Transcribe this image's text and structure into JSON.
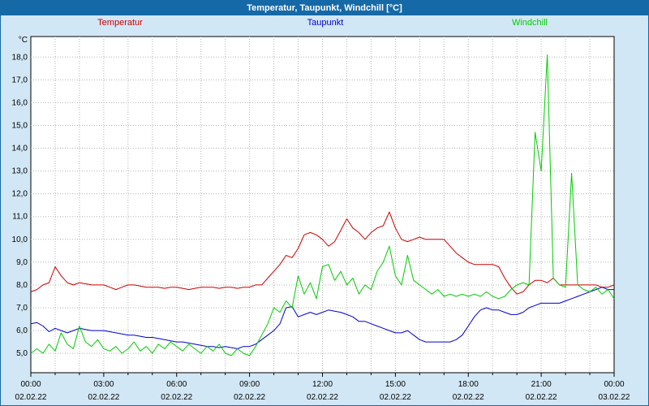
{
  "window": {
    "title": "Temperatur, Taupunkt, Windchill [°C]"
  },
  "colors": {
    "titlebar_bg": "#1569a6",
    "titlebar_text": "#ffffff",
    "page_bg": "#d2e7f5",
    "plot_bg": "#ffffff",
    "plot_border": "#000000",
    "grid": "#b4b4b4",
    "temperatur": "#cc0000",
    "taupunkt": "#0000cc",
    "windchill": "#00cc00"
  },
  "legend": [
    {
      "label": "Temperatur",
      "color": "#cc0000"
    },
    {
      "label": "Taupunkt",
      "color": "#0000cc"
    },
    {
      "label": "Windchill",
      "color": "#00cc00"
    }
  ],
  "chart_data": {
    "type": "line",
    "title": "Temperatur, Taupunkt, Windchill [°C]",
    "y_unit": "°C",
    "ylim": [
      4.15,
      18.9
    ],
    "y_ticks": [
      18,
      17,
      16,
      15,
      14,
      13,
      12,
      11,
      10,
      9,
      8,
      7,
      6,
      5
    ],
    "y_tick_labels": [
      "18,0",
      "17,0",
      "16,0",
      "15,0",
      "14,0",
      "13,0",
      "12,0",
      "11,0",
      "10,0",
      "9,0",
      "8,0",
      "7,0",
      "6,0",
      "5,0"
    ],
    "x_start_hour": 0,
    "x_step_hours": 0.25,
    "x_total_hours": 24,
    "x_grid_every_hours": 1,
    "grid": true,
    "legend_position": "top",
    "x_ticks": [
      {
        "hour": 0,
        "time": "00:00",
        "date": "02.02.22"
      },
      {
        "hour": 3,
        "time": "03:00",
        "date": "02.02.22"
      },
      {
        "hour": 6,
        "time": "06:00",
        "date": "02.02.22"
      },
      {
        "hour": 9,
        "time": "09:00",
        "date": "02.02.22"
      },
      {
        "hour": 12,
        "time": "12:00",
        "date": "02.02.22"
      },
      {
        "hour": 15,
        "time": "15:00",
        "date": "02.02.22"
      },
      {
        "hour": 18,
        "time": "18:00",
        "date": "02.02.22"
      },
      {
        "hour": 21,
        "time": "21:00",
        "date": "02.02.22"
      },
      {
        "hour": 24,
        "time": "00:00",
        "date": "03.02.22"
      }
    ],
    "series": [
      {
        "name": "Temperatur",
        "color": "#cc0000",
        "values": [
          7.7,
          7.8,
          8.0,
          8.1,
          8.8,
          8.4,
          8.1,
          8.0,
          8.1,
          8.05,
          8.0,
          8.0,
          8.0,
          7.9,
          7.8,
          7.9,
          8.0,
          8.0,
          7.95,
          7.9,
          7.9,
          7.9,
          7.85,
          7.9,
          7.9,
          7.85,
          7.8,
          7.85,
          7.9,
          7.9,
          7.9,
          7.85,
          7.9,
          7.9,
          7.85,
          7.9,
          7.9,
          8.0,
          8.0,
          8.3,
          8.6,
          8.9,
          9.3,
          9.2,
          9.6,
          10.2,
          10.3,
          10.2,
          10.0,
          9.7,
          9.9,
          10.4,
          10.9,
          10.5,
          10.3,
          10.0,
          10.3,
          10.5,
          10.6,
          11.2,
          10.5,
          10.0,
          9.9,
          10.0,
          10.1,
          10.0,
          10.0,
          10.0,
          10.0,
          9.7,
          9.4,
          9.2,
          9.0,
          8.9,
          8.9,
          8.9,
          8.9,
          8.8,
          8.3,
          7.9,
          7.6,
          7.7,
          8.0,
          8.2,
          8.2,
          8.1,
          8.3,
          8.0,
          8.0,
          8.0,
          8.0,
          8.0,
          8.0,
          8.0,
          7.9,
          7.9,
          8.0
        ]
      },
      {
        "name": "Taupunkt",
        "color": "#0000cc",
        "values": [
          6.3,
          6.35,
          6.2,
          5.95,
          6.1,
          6.0,
          5.9,
          6.0,
          6.1,
          6.05,
          6.0,
          6.0,
          6.0,
          5.95,
          5.9,
          5.85,
          5.8,
          5.8,
          5.75,
          5.7,
          5.7,
          5.65,
          5.6,
          5.55,
          5.5,
          5.5,
          5.45,
          5.4,
          5.35,
          5.3,
          5.3,
          5.25,
          5.3,
          5.25,
          5.2,
          5.3,
          5.3,
          5.4,
          5.6,
          5.8,
          6.0,
          6.3,
          7.0,
          7.05,
          6.6,
          6.7,
          6.8,
          6.7,
          6.8,
          6.9,
          6.85,
          6.8,
          6.7,
          6.6,
          6.4,
          6.4,
          6.3,
          6.2,
          6.1,
          6.0,
          5.9,
          5.9,
          6.0,
          5.8,
          5.6,
          5.5,
          5.5,
          5.5,
          5.5,
          5.5,
          5.6,
          5.8,
          6.2,
          6.6,
          6.9,
          7.0,
          6.9,
          6.9,
          6.8,
          6.7,
          6.7,
          6.8,
          7.0,
          7.1,
          7.2,
          7.2,
          7.2,
          7.2,
          7.3,
          7.4,
          7.5,
          7.6,
          7.7,
          7.8,
          7.9,
          7.8,
          7.8
        ]
      },
      {
        "name": "Windchill",
        "color": "#00cc00",
        "values": [
          5.0,
          5.2,
          5.0,
          5.4,
          5.1,
          5.9,
          5.4,
          5.2,
          6.2,
          5.5,
          5.3,
          5.6,
          5.2,
          5.1,
          5.3,
          5.0,
          5.2,
          5.5,
          5.1,
          5.3,
          5.0,
          5.4,
          5.2,
          5.5,
          5.3,
          5.1,
          5.4,
          5.2,
          5.0,
          5.3,
          5.1,
          5.4,
          5.0,
          4.9,
          5.2,
          5.0,
          4.9,
          5.3,
          5.8,
          6.3,
          7.0,
          6.8,
          7.3,
          7.0,
          8.4,
          7.6,
          8.1,
          7.4,
          8.8,
          8.9,
          8.2,
          8.6,
          8.0,
          8.3,
          7.6,
          8.0,
          7.8,
          8.6,
          9.0,
          9.7,
          8.4,
          8.0,
          9.3,
          8.2,
          8.0,
          7.8,
          7.6,
          7.8,
          7.5,
          7.6,
          7.5,
          7.6,
          7.5,
          7.6,
          7.5,
          7.7,
          7.5,
          7.4,
          7.5,
          7.8,
          8.0,
          8.1,
          8.0,
          14.7,
          13.0,
          18.1,
          8.3,
          8.0,
          7.9,
          12.9,
          8.0,
          7.8,
          7.7,
          7.9,
          7.6,
          7.8,
          7.4
        ]
      }
    ]
  }
}
